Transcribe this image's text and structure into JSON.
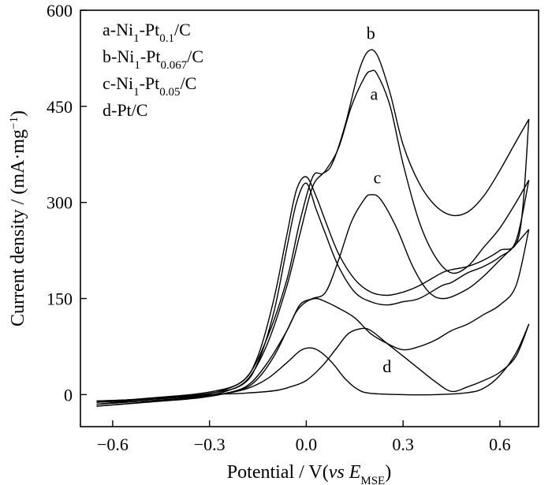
{
  "chart_data": {
    "type": "line",
    "xlabel": "Potential / V(vs EMSE)",
    "ylabel": "Current density / (mA·mg−1)",
    "xlim": [
      -0.7,
      0.72
    ],
    "ylim": [
      -50,
      600
    ],
    "xticks": [
      "−0.6",
      "−0.3",
      "0.0",
      "0.3",
      "0.6"
    ],
    "xtick_values": [
      -0.6,
      -0.3,
      0.0,
      0.3,
      0.6
    ],
    "yticks": [
      "0",
      "150",
      "300",
      "450",
      "600"
    ],
    "ytick_values": [
      0,
      150,
      300,
      450,
      600
    ],
    "legend": {
      "placement": "top-left",
      "entries": [
        "a-Ni1-Pt0.1/C",
        "b-Ni1-Pt0.067/C",
        "c-Ni1-Pt0.05/C",
        "d-Pt/C"
      ]
    },
    "series": [
      {
        "name": "a",
        "label": "a",
        "label_at": [
          0.21,
          460
        ],
        "forward": [
          [
            -0.65,
            -15
          ],
          [
            -0.5,
            -10
          ],
          [
            -0.35,
            -4
          ],
          [
            -0.25,
            5
          ],
          [
            -0.18,
            25
          ],
          [
            -0.12,
            80
          ],
          [
            -0.06,
            170
          ],
          [
            -0.02,
            250
          ],
          [
            0.02,
            325
          ],
          [
            0.06,
            350
          ],
          [
            0.1,
            385
          ],
          [
            0.14,
            450
          ],
          [
            0.18,
            495
          ],
          [
            0.2,
            505
          ],
          [
            0.22,
            500
          ],
          [
            0.26,
            450
          ],
          [
            0.3,
            360
          ],
          [
            0.35,
            270
          ],
          [
            0.4,
            215
          ],
          [
            0.45,
            190
          ],
          [
            0.5,
            200
          ],
          [
            0.55,
            230
          ],
          [
            0.6,
            260
          ],
          [
            0.65,
            300
          ],
          [
            0.69,
            335
          ]
        ],
        "reverse": [
          [
            0.69,
            335
          ],
          [
            0.65,
            240
          ],
          [
            0.6,
            215
          ],
          [
            0.55,
            200
          ],
          [
            0.5,
            190
          ],
          [
            0.45,
            175
          ],
          [
            0.42,
            170
          ],
          [
            0.35,
            150
          ],
          [
            0.3,
            145
          ],
          [
            0.25,
            140
          ],
          [
            0.2,
            145
          ],
          [
            0.15,
            160
          ],
          [
            0.1,
            200
          ],
          [
            0.06,
            250
          ],
          [
            0.03,
            290
          ],
          [
            0.0,
            330
          ],
          [
            -0.03,
            300
          ],
          [
            -0.06,
            230
          ],
          [
            -0.1,
            130
          ],
          [
            -0.15,
            50
          ],
          [
            -0.2,
            15
          ],
          [
            -0.3,
            2
          ],
          [
            -0.45,
            -5
          ],
          [
            -0.65,
            -15
          ]
        ]
      },
      {
        "name": "b",
        "label": "b",
        "label_at": [
          0.2,
          555
        ],
        "forward": [
          [
            -0.65,
            -12
          ],
          [
            -0.5,
            -8
          ],
          [
            -0.35,
            -2
          ],
          [
            -0.25,
            8
          ],
          [
            -0.18,
            30
          ],
          [
            -0.12,
            90
          ],
          [
            -0.06,
            180
          ],
          [
            -0.02,
            270
          ],
          [
            0.02,
            340
          ],
          [
            0.05,
            345
          ],
          [
            0.08,
            360
          ],
          [
            0.12,
            420
          ],
          [
            0.16,
            500
          ],
          [
            0.19,
            535
          ],
          [
            0.22,
            530
          ],
          [
            0.26,
            470
          ],
          [
            0.3,
            390
          ],
          [
            0.35,
            330
          ],
          [
            0.4,
            295
          ],
          [
            0.45,
            280
          ],
          [
            0.5,
            285
          ],
          [
            0.55,
            310
          ],
          [
            0.6,
            350
          ],
          [
            0.65,
            395
          ],
          [
            0.69,
            430
          ]
        ],
        "reverse": [
          [
            0.69,
            430
          ],
          [
            0.66,
            250
          ],
          [
            0.6,
            225
          ],
          [
            0.55,
            210
          ],
          [
            0.5,
            200
          ],
          [
            0.45,
            195
          ],
          [
            0.42,
            190
          ],
          [
            0.35,
            170
          ],
          [
            0.3,
            160
          ],
          [
            0.25,
            155
          ],
          [
            0.2,
            160
          ],
          [
            0.15,
            180
          ],
          [
            0.1,
            220
          ],
          [
            0.06,
            270
          ],
          [
            0.03,
            310
          ],
          [
            0.0,
            340
          ],
          [
            -0.03,
            320
          ],
          [
            -0.06,
            250
          ],
          [
            -0.1,
            150
          ],
          [
            -0.15,
            60
          ],
          [
            -0.2,
            20
          ],
          [
            -0.3,
            4
          ],
          [
            -0.45,
            -4
          ],
          [
            -0.65,
            -12
          ]
        ]
      },
      {
        "name": "c",
        "label": "c",
        "label_at": [
          0.22,
          330
        ],
        "forward": [
          [
            -0.65,
            -18
          ],
          [
            -0.5,
            -12
          ],
          [
            -0.35,
            -6
          ],
          [
            -0.25,
            2
          ],
          [
            -0.18,
            15
          ],
          [
            -0.12,
            50
          ],
          [
            -0.06,
            100
          ],
          [
            -0.02,
            140
          ],
          [
            0.02,
            150
          ],
          [
            0.06,
            160
          ],
          [
            0.1,
            210
          ],
          [
            0.14,
            270
          ],
          [
            0.18,
            305
          ],
          [
            0.2,
            312
          ],
          [
            0.23,
            305
          ],
          [
            0.28,
            260
          ],
          [
            0.33,
            200
          ],
          [
            0.38,
            160
          ],
          [
            0.43,
            150
          ],
          [
            0.5,
            165
          ],
          [
            0.55,
            185
          ],
          [
            0.6,
            210
          ],
          [
            0.65,
            235
          ],
          [
            0.69,
            258
          ]
        ],
        "reverse": [
          [
            0.69,
            258
          ],
          [
            0.65,
            170
          ],
          [
            0.6,
            140
          ],
          [
            0.55,
            125
          ],
          [
            0.5,
            110
          ],
          [
            0.45,
            100
          ],
          [
            0.4,
            85
          ],
          [
            0.35,
            75
          ],
          [
            0.3,
            70
          ],
          [
            0.25,
            80
          ],
          [
            0.2,
            95
          ],
          [
            0.15,
            120
          ],
          [
            0.1,
            135
          ],
          [
            0.06,
            145
          ],
          [
            0.03,
            150
          ],
          [
            0.0,
            145
          ],
          [
            -0.03,
            130
          ],
          [
            -0.06,
            100
          ],
          [
            -0.1,
            60
          ],
          [
            -0.15,
            25
          ],
          [
            -0.2,
            8
          ],
          [
            -0.3,
            -2
          ],
          [
            -0.45,
            -10
          ],
          [
            -0.65,
            -18
          ]
        ]
      },
      {
        "name": "d",
        "label": "d",
        "label_at": [
          0.25,
          35
        ],
        "forward": [
          [
            -0.65,
            -10
          ],
          [
            -0.5,
            -7
          ],
          [
            -0.35,
            -3
          ],
          [
            -0.25,
            2
          ],
          [
            -0.18,
            10
          ],
          [
            -0.12,
            25
          ],
          [
            -0.06,
            50
          ],
          [
            -0.02,
            68
          ],
          [
            0.01,
            73
          ],
          [
            0.04,
            68
          ],
          [
            0.08,
            50
          ],
          [
            0.12,
            25
          ],
          [
            0.16,
            8
          ],
          [
            0.2,
            2
          ],
          [
            0.3,
            0
          ],
          [
            0.4,
            0
          ],
          [
            0.5,
            3
          ],
          [
            0.55,
            10
          ],
          [
            0.6,
            30
          ],
          [
            0.65,
            65
          ],
          [
            0.69,
            110
          ]
        ],
        "reverse": [
          [
            0.69,
            110
          ],
          [
            0.65,
            60
          ],
          [
            0.6,
            35
          ],
          [
            0.55,
            22
          ],
          [
            0.5,
            12
          ],
          [
            0.45,
            5
          ],
          [
            0.4,
            20
          ],
          [
            0.35,
            40
          ],
          [
            0.3,
            60
          ],
          [
            0.25,
            80
          ],
          [
            0.2,
            100
          ],
          [
            0.17,
            103
          ],
          [
            0.13,
            95
          ],
          [
            0.09,
            70
          ],
          [
            0.05,
            45
          ],
          [
            0.0,
            22
          ],
          [
            -0.05,
            12
          ],
          [
            -0.1,
            6
          ],
          [
            -0.2,
            2
          ],
          [
            -0.3,
            0
          ],
          [
            -0.45,
            -6
          ],
          [
            -0.65,
            -10
          ]
        ]
      }
    ]
  }
}
